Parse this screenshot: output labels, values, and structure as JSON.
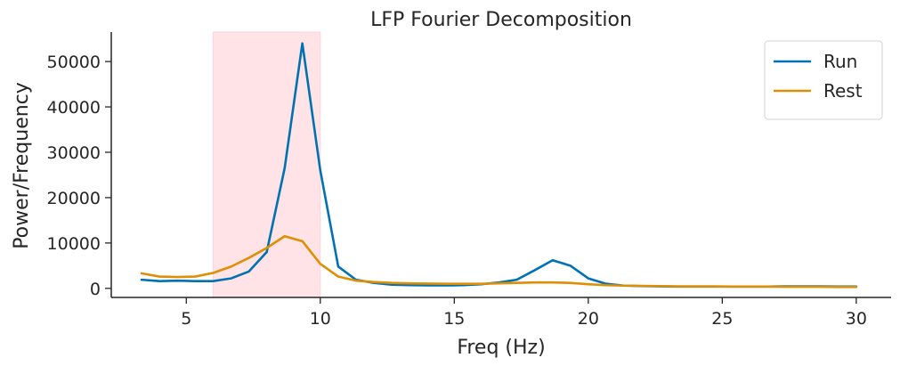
{
  "chart_data": {
    "type": "line",
    "title": "LFP Fourier Decomposition",
    "xlabel": "Freq (Hz)",
    "ylabel": "Power/Frequency",
    "xlim": [
      2.2,
      31.3
    ],
    "ylim": [
      -2000,
      56500
    ],
    "xticks": [
      5,
      10,
      15,
      20,
      25,
      30
    ],
    "yticks": [
      0,
      10000,
      20000,
      30000,
      40000,
      50000
    ],
    "grid": false,
    "legend": "top-right",
    "highlight_band": {
      "x": [
        6,
        10
      ],
      "color": "#ffc0c8"
    },
    "x": [
      3.33,
      4.0,
      4.67,
      5.33,
      6.0,
      6.67,
      7.33,
      8.0,
      8.67,
      9.33,
      10.0,
      10.67,
      11.33,
      12.0,
      12.67,
      13.33,
      14.0,
      14.67,
      15.33,
      16.0,
      16.67,
      17.33,
      18.0,
      18.67,
      19.33,
      20.0,
      20.67,
      21.33,
      22.0,
      22.67,
      23.33,
      24.0,
      24.67,
      25.33,
      26.0,
      26.67,
      27.33,
      28.0,
      28.67,
      29.33,
      30.0
    ],
    "series": [
      {
        "name": "Run",
        "color": "#0072b2",
        "values": [
          1900,
          1600,
          1700,
          1600,
          1600,
          2200,
          3700,
          8000,
          26500,
          54000,
          26000,
          4800,
          1900,
          1200,
          800,
          700,
          650,
          650,
          700,
          900,
          1300,
          1900,
          4000,
          6200,
          5000,
          2200,
          1000,
          600,
          500,
          450,
          400,
          400,
          400,
          400,
          400,
          400,
          450,
          450,
          450,
          400,
          400
        ]
      },
      {
        "name": "Rest",
        "color": "#de8f05",
        "values": [
          3300,
          2600,
          2500,
          2600,
          3400,
          4800,
          6700,
          8900,
          11500,
          10400,
          5400,
          2600,
          1700,
          1400,
          1200,
          1100,
          1050,
          1000,
          1000,
          1000,
          1100,
          1200,
          1300,
          1300,
          1200,
          900,
          700,
          600,
          550,
          500,
          450,
          450,
          450,
          400,
          400,
          400,
          350,
          350,
          350,
          300,
          300
        ]
      }
    ]
  }
}
